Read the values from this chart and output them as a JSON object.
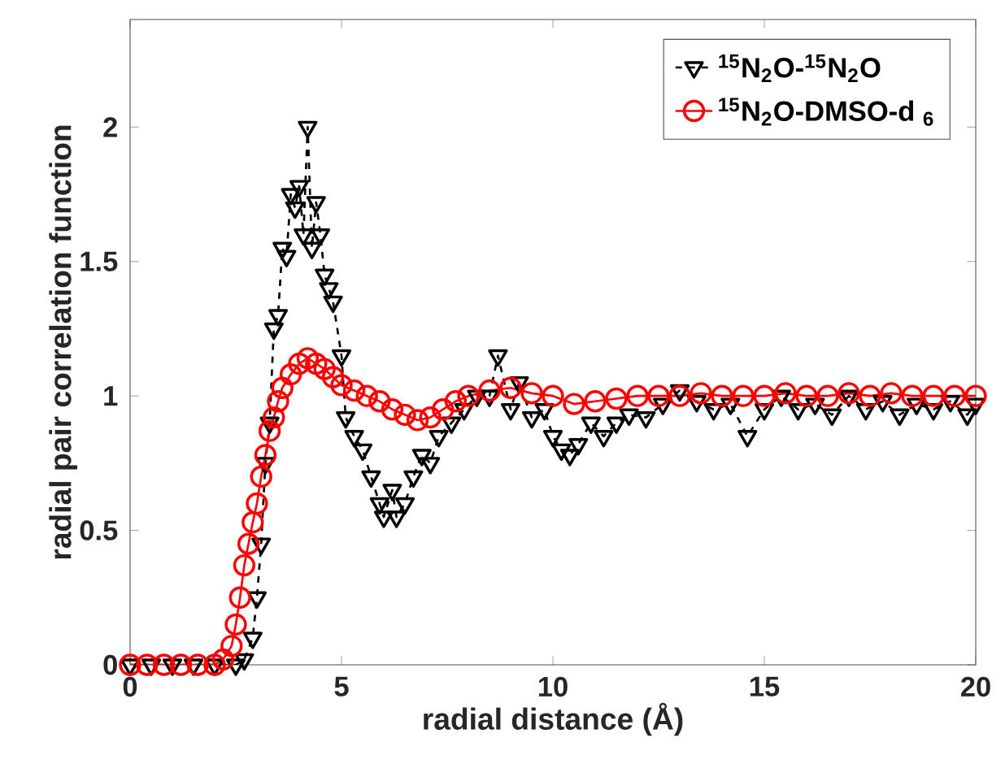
{
  "chart_data": {
    "type": "line",
    "xlabel": "radial distance (Å)",
    "ylabel": "radial pair correlation function",
    "xlim": [
      0,
      20
    ],
    "ylim": [
      0,
      2.4
    ],
    "xticks": [
      0,
      5,
      10,
      15,
      20
    ],
    "yticks": [
      0,
      0.5,
      1,
      1.5,
      2
    ],
    "legend": "top right",
    "grid": false,
    "series": [
      {
        "name": "$^{15}$N$_{2}$O-$^{15}$N$_{2}$O",
        "color": "#000000",
        "marker": "triangle",
        "line_style": "dashed",
        "x": [
          0,
          0.5,
          1,
          1.5,
          2,
          2.5,
          2.7,
          2.9,
          3.0,
          3.1,
          3.2,
          3.3,
          3.4,
          3.5,
          3.6,
          3.7,
          3.8,
          3.9,
          4.0,
          4.1,
          4.2,
          4.3,
          4.4,
          4.5,
          4.6,
          4.7,
          4.8,
          5.0,
          5.1,
          5.3,
          5.5,
          5.7,
          5.9,
          6.0,
          6.2,
          6.3,
          6.5,
          6.7,
          6.9,
          7.1,
          7.3,
          7.6,
          7.9,
          8.2,
          8.5,
          8.7,
          9.0,
          9.2,
          9.5,
          9.8,
          10.0,
          10.2,
          10.4,
          10.6,
          10.9,
          11.2,
          11.5,
          11.8,
          12.2,
          12.6,
          13.0,
          13.4,
          13.8,
          14.2,
          14.6,
          15.0,
          15.4,
          15.8,
          16.2,
          16.6,
          17.0,
          17.4,
          17.8,
          18.2,
          18.6,
          19.0,
          19.4,
          19.8,
          20.0
        ],
        "values": [
          0,
          0,
          0,
          0,
          0,
          0,
          0.02,
          0.1,
          0.25,
          0.45,
          0.75,
          0.9,
          1.25,
          1.3,
          1.55,
          1.52,
          1.75,
          1.7,
          1.78,
          1.6,
          2.0,
          1.55,
          1.72,
          1.6,
          1.45,
          1.4,
          1.35,
          1.15,
          0.92,
          0.85,
          0.8,
          0.7,
          0.6,
          0.55,
          0.65,
          0.55,
          0.6,
          0.7,
          0.78,
          0.75,
          0.85,
          0.9,
          0.95,
          1.0,
          1.0,
          1.15,
          0.95,
          1.05,
          0.92,
          0.95,
          0.85,
          0.8,
          0.78,
          0.82,
          0.9,
          0.85,
          0.9,
          0.93,
          0.92,
          0.97,
          1.02,
          0.98,
          0.95,
          0.97,
          0.85,
          0.95,
          1.0,
          0.95,
          0.97,
          0.93,
          1.0,
          0.95,
          0.98,
          0.93,
          0.97,
          0.95,
          0.98,
          0.93,
          0.97
        ]
      },
      {
        "name": "$^{15}$N$_{2}$O-DMSO-d $_{6}$",
        "color": "#ff0000",
        "marker": "circle",
        "line_style": "solid",
        "x": [
          0,
          0.4,
          0.8,
          1.2,
          1.6,
          2.0,
          2.2,
          2.4,
          2.5,
          2.6,
          2.7,
          2.8,
          2.9,
          3.0,
          3.1,
          3.2,
          3.3,
          3.4,
          3.5,
          3.6,
          3.8,
          4.0,
          4.2,
          4.4,
          4.6,
          4.8,
          5.0,
          5.3,
          5.6,
          5.9,
          6.2,
          6.5,
          6.8,
          7.1,
          7.4,
          7.7,
          8.0,
          8.5,
          9.0,
          9.5,
          10.0,
          10.5,
          11.0,
          11.5,
          12.0,
          12.5,
          13.0,
          13.5,
          14.0,
          14.5,
          15.0,
          15.5,
          16.0,
          16.5,
          17.0,
          17.5,
          18.0,
          18.5,
          19.0,
          19.5,
          20.0
        ],
        "values": [
          0,
          0,
          0,
          0,
          0,
          0,
          0.02,
          0.07,
          0.15,
          0.25,
          0.37,
          0.45,
          0.53,
          0.6,
          0.7,
          0.78,
          0.87,
          0.92,
          0.98,
          1.03,
          1.08,
          1.12,
          1.14,
          1.12,
          1.1,
          1.07,
          1.04,
          1.02,
          1.0,
          0.98,
          0.95,
          0.93,
          0.91,
          0.92,
          0.95,
          0.98,
          1.0,
          1.02,
          1.03,
          1.01,
          1.0,
          0.97,
          0.98,
          0.99,
          1.0,
          1.0,
          1.0,
          1.01,
          1.0,
          1.0,
          1.0,
          1.01,
          1.0,
          1.0,
          1.01,
          1.0,
          1.01,
          1.0,
          1.0,
          1.0,
          1.0
        ]
      }
    ]
  }
}
